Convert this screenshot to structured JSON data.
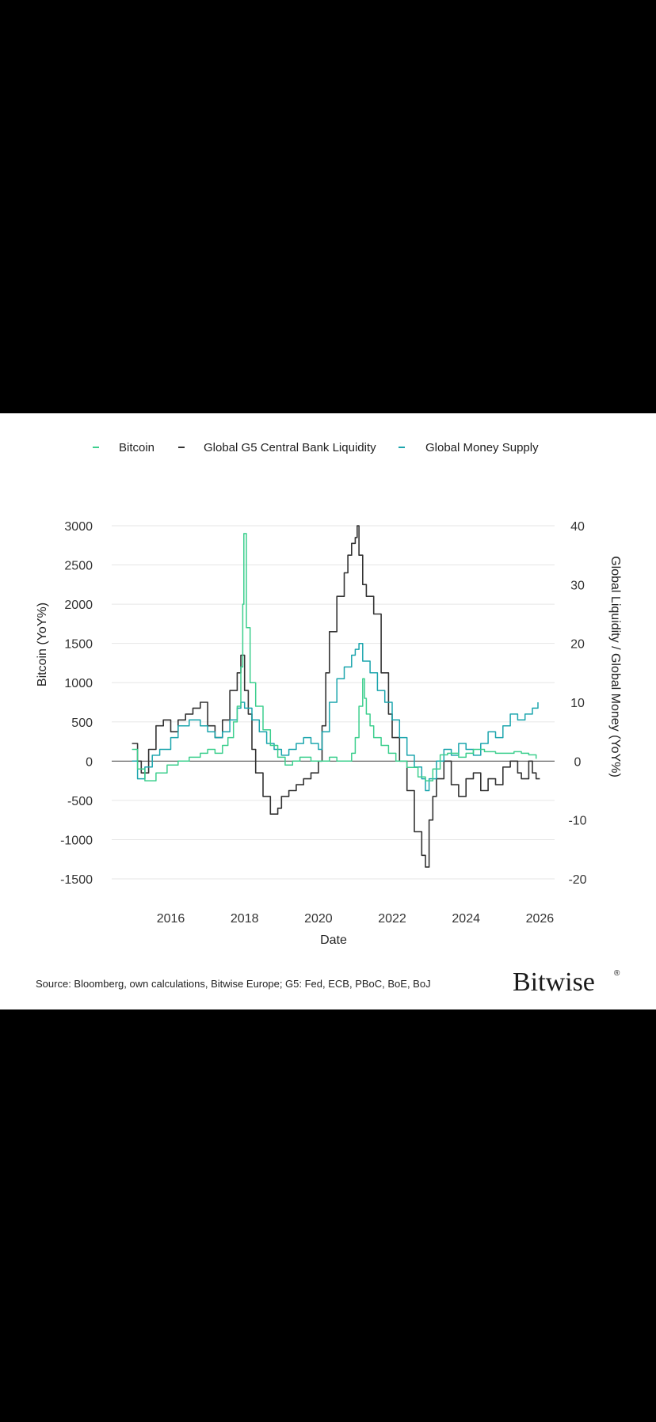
{
  "legend": [
    {
      "label": "Bitcoin",
      "color": "#3dcf8e"
    },
    {
      "label": "Global G5 Central Bank Liquidity",
      "color": "#333333"
    },
    {
      "label": "Global Money Supply",
      "color": "#1ba5ad"
    }
  ],
  "source_text": "Source: Bloomberg, own calculations, Bitwise Europe; G5: Fed, ECB, PBoC, BoE, BoJ",
  "brand": {
    "name": "Bitwise",
    "mark": "®"
  },
  "chart_data": {
    "type": "line",
    "title": "",
    "xlabel": "Date",
    "ylabel_left": "Bitcoin (YoY%)",
    "ylabel_right": "Global Liquidity / Global Money (YoY%)",
    "xlim": [
      2014.4,
      2026.4
    ],
    "ylim_left": [
      -1500,
      3000
    ],
    "ylim_right": [
      -20,
      40
    ],
    "x_ticks": [
      2016,
      2018,
      2020,
      2022,
      2024,
      2026
    ],
    "y_ticks_left": [
      3000,
      2500,
      2000,
      1500,
      1000,
      500,
      0,
      -500,
      -1000,
      -1500
    ],
    "y_ticks_right": [
      40,
      30,
      20,
      10,
      0,
      -10,
      -20
    ],
    "grid": {
      "horizontal": true,
      "vertical": false
    },
    "legend_position": "top",
    "series": [
      {
        "name": "Bitcoin",
        "axis": "left",
        "color": "#3dcf8e",
        "x": [
          2014.95,
          2015.1,
          2015.3,
          2015.6,
          2015.9,
          2016.2,
          2016.5,
          2016.8,
          2017.0,
          2017.2,
          2017.4,
          2017.55,
          2017.7,
          2017.8,
          2017.9,
          2017.95,
          2017.98,
          2018.05,
          2018.15,
          2018.3,
          2018.5,
          2018.7,
          2018.9,
          2019.1,
          2019.3,
          2019.5,
          2019.8,
          2020.0,
          2020.3,
          2020.5,
          2020.7,
          2020.9,
          2021.0,
          2021.1,
          2021.2,
          2021.25,
          2021.3,
          2021.4,
          2021.5,
          2021.7,
          2021.9,
          2022.1,
          2022.4,
          2022.7,
          2022.9,
          2023.1,
          2023.3,
          2023.5,
          2023.8,
          2024.0,
          2024.2,
          2024.5,
          2024.8,
          2025.0,
          2025.3,
          2025.5,
          2025.7,
          2025.9
        ],
        "values": [
          150,
          -100,
          -250,
          -150,
          -50,
          0,
          50,
          100,
          150,
          100,
          200,
          300,
          500,
          700,
          1200,
          2000,
          2900,
          1700,
          1000,
          700,
          400,
          200,
          50,
          -50,
          0,
          50,
          0,
          0,
          50,
          0,
          0,
          100,
          300,
          700,
          1050,
          800,
          600,
          450,
          300,
          200,
          100,
          0,
          -80,
          -200,
          -250,
          -100,
          80,
          100,
          50,
          100,
          150,
          120,
          100,
          100,
          120,
          100,
          80,
          30
        ]
      },
      {
        "name": "Global G5 Central Bank Liquidity",
        "axis": "right",
        "color": "#333333",
        "x": [
          2014.95,
          2015.1,
          2015.2,
          2015.4,
          2015.6,
          2015.8,
          2016.0,
          2016.2,
          2016.4,
          2016.6,
          2016.8,
          2017.0,
          2017.2,
          2017.4,
          2017.6,
          2017.8,
          2017.9,
          2018.0,
          2018.1,
          2018.2,
          2018.3,
          2018.5,
          2018.7,
          2018.9,
          2019.0,
          2019.2,
          2019.4,
          2019.6,
          2019.8,
          2020.0,
          2020.1,
          2020.2,
          2020.3,
          2020.5,
          2020.7,
          2020.8,
          2020.9,
          2021.0,
          2021.05,
          2021.1,
          2021.2,
          2021.3,
          2021.5,
          2021.7,
          2021.9,
          2022.0,
          2022.2,
          2022.4,
          2022.6,
          2022.8,
          2022.9,
          2023.0,
          2023.1,
          2023.2,
          2023.4,
          2023.6,
          2023.8,
          2024.0,
          2024.2,
          2024.4,
          2024.6,
          2024.8,
          2025.0,
          2025.2,
          2025.4,
          2025.5,
          2025.7,
          2025.8,
          2025.9,
          2026.0
        ],
        "values": [
          3,
          0,
          -2,
          2,
          6,
          7,
          5,
          7,
          8,
          9,
          10,
          6,
          4,
          7,
          12,
          15,
          18,
          12,
          8,
          2,
          -2,
          -6,
          -9,
          -8,
          -6,
          -5,
          -4,
          -3,
          -2,
          0,
          6,
          15,
          22,
          28,
          32,
          35,
          37,
          38,
          40,
          35,
          30,
          28,
          25,
          15,
          8,
          4,
          0,
          -5,
          -12,
          -16,
          -18,
          -10,
          -6,
          -3,
          0,
          -4,
          -6,
          -3,
          -2,
          -5,
          -3,
          -4,
          -1,
          0,
          -2,
          -3,
          0,
          -2,
          -3,
          -3
        ]
      },
      {
        "name": "Global Money Supply",
        "axis": "right",
        "color": "#1ba5ad",
        "x": [
          2014.95,
          2015.1,
          2015.3,
          2015.5,
          2015.7,
          2016.0,
          2016.2,
          2016.5,
          2016.8,
          2017.0,
          2017.2,
          2017.4,
          2017.6,
          2017.8,
          2017.9,
          2018.0,
          2018.2,
          2018.4,
          2018.6,
          2018.8,
          2019.0,
          2019.2,
          2019.4,
          2019.6,
          2019.8,
          2020.0,
          2020.1,
          2020.3,
          2020.5,
          2020.7,
          2020.9,
          2021.0,
          2021.1,
          2021.2,
          2021.4,
          2021.6,
          2021.8,
          2022.0,
          2022.2,
          2022.4,
          2022.6,
          2022.8,
          2022.9,
          2023.0,
          2023.2,
          2023.4,
          2023.6,
          2023.8,
          2024.0,
          2024.2,
          2024.4,
          2024.6,
          2024.8,
          2025.0,
          2025.2,
          2025.4,
          2025.6,
          2025.8,
          2025.95
        ],
        "values": [
          0,
          -3,
          -1,
          1,
          2,
          4,
          6,
          7,
          6,
          5,
          4,
          5,
          7,
          9,
          10,
          9,
          7,
          5,
          3,
          2,
          1,
          2,
          3,
          4,
          3,
          2,
          5,
          10,
          14,
          16,
          18,
          19,
          20,
          17,
          15,
          12,
          10,
          7,
          4,
          1,
          -1,
          -3,
          -5,
          -3,
          0,
          2,
          1,
          3,
          2,
          1,
          3,
          5,
          4,
          6,
          8,
          7,
          8,
          9,
          10
        ]
      }
    ]
  }
}
